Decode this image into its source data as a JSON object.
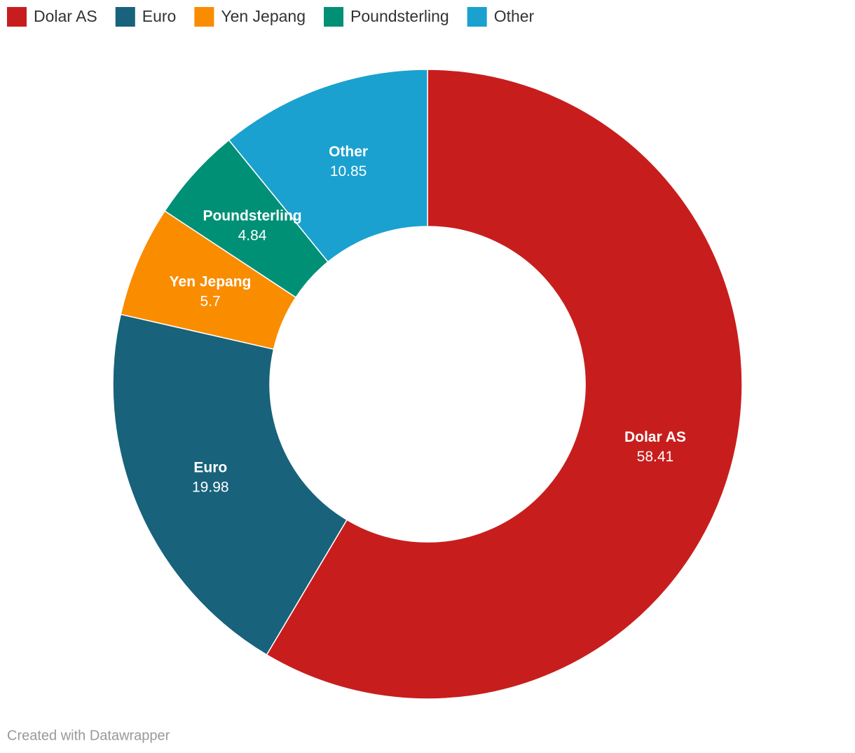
{
  "chart_data": {
    "type": "donut",
    "categories": [
      "Dolar AS",
      "Euro",
      "Yen Jepang",
      "Poundsterling",
      "Other"
    ],
    "values": [
      58.41,
      19.98,
      5.7,
      4.84,
      10.85
    ],
    "colors": [
      "#c71e1d",
      "#18627b",
      "#fa8c00",
      "#009076",
      "#1aa1cf"
    ],
    "legend": "top-left",
    "credit": "Created with Datawrapper"
  }
}
